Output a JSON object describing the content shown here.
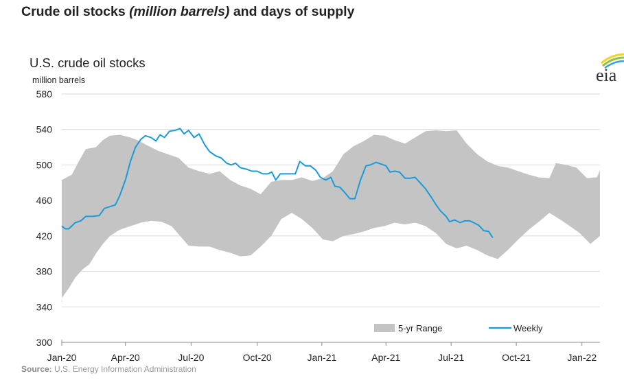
{
  "header": {
    "title_a": "Crude oil stocks ",
    "title_italic": "(million barrels)",
    "title_b": " and days of supply"
  },
  "logo": {
    "text": "eia"
  },
  "source": {
    "label": "Source:",
    "text": "U.S. Energy Information Administration"
  },
  "colors": {
    "weekly": "#1a9bd7",
    "range": "#c4c4c4",
    "grid": "#d9d9d9",
    "axis": "#888888"
  },
  "chart_data": {
    "type": "line",
    "title": "U.S. crude oil stocks",
    "ylabel": "million barrels",
    "xlabel": "",
    "x_unit": "weeks since Jan-20",
    "xlim": [
      0,
      107.4
    ],
    "ylim": [
      300,
      580
    ],
    "yticks": [
      300,
      340,
      380,
      420,
      460,
      500,
      540,
      580
    ],
    "xticks": [
      {
        "label": "Jan-20",
        "x": 0
      },
      {
        "label": "Apr-20",
        "x": 12.7
      },
      {
        "label": "Jul-20",
        "x": 25.8
      },
      {
        "label": "Oct-20",
        "x": 39
      },
      {
        "label": "Jan-21",
        "x": 51.9
      },
      {
        "label": "Apr-21",
        "x": 64.7
      },
      {
        "label": "Jul-21",
        "x": 77.7
      },
      {
        "label": "Oct-21",
        "x": 90.7
      },
      {
        "label": "Jan-22",
        "x": 103.8
      }
    ],
    "grid": true,
    "legend": {
      "placement": "bottom-right",
      "entries": [
        "5-yr Range",
        "Weekly"
      ]
    },
    "series": [
      {
        "name": "5-yr Range",
        "type": "area-range",
        "upper": [
          [
            0,
            483
          ],
          [
            2,
            489
          ],
          [
            3.4,
            504
          ],
          [
            4.8,
            518
          ],
          [
            6.8,
            520
          ],
          [
            8.2,
            528
          ],
          [
            9.6,
            533
          ],
          [
            11.6,
            534
          ],
          [
            13.7,
            531
          ],
          [
            15.1,
            528
          ],
          [
            17.1,
            522
          ],
          [
            19.2,
            516
          ],
          [
            21.2,
            512
          ],
          [
            23.3,
            508
          ],
          [
            25.3,
            497
          ],
          [
            27.4,
            493
          ],
          [
            29.5,
            490
          ],
          [
            31.5,
            493
          ],
          [
            33.6,
            483
          ],
          [
            35.6,
            477
          ],
          [
            37.7,
            473
          ],
          [
            39.7,
            467
          ],
          [
            41.8,
            481
          ],
          [
            43.8,
            483
          ],
          [
            45.9,
            483
          ],
          [
            47.9,
            486
          ],
          [
            50,
            482
          ],
          [
            52.1,
            485
          ],
          [
            54.1,
            493
          ],
          [
            56.2,
            512
          ],
          [
            58.2,
            521
          ],
          [
            60.3,
            527
          ],
          [
            62.3,
            534
          ],
          [
            64.4,
            533
          ],
          [
            66.4,
            528
          ],
          [
            68.5,
            524
          ],
          [
            70.5,
            531
          ],
          [
            72.6,
            538
          ],
          [
            74.7,
            539
          ],
          [
            76.7,
            538
          ],
          [
            78.8,
            539
          ],
          [
            80.8,
            524
          ],
          [
            82.9,
            512
          ],
          [
            84.9,
            504
          ],
          [
            87,
            499
          ],
          [
            89,
            497
          ],
          [
            91.1,
            493
          ],
          [
            93.2,
            489
          ],
          [
            95.2,
            486
          ],
          [
            97.3,
            485
          ],
          [
            98.6,
            502
          ],
          [
            100.7,
            500
          ],
          [
            102.7,
            497
          ],
          [
            104.8,
            485
          ],
          [
            106.8,
            486
          ],
          [
            107.4,
            494
          ]
        ],
        "lower": [
          [
            0,
            350
          ],
          [
            1.4,
            361
          ],
          [
            2.7,
            373
          ],
          [
            4.1,
            382
          ],
          [
            5.5,
            388
          ],
          [
            6.8,
            400
          ],
          [
            8.2,
            411
          ],
          [
            9.6,
            420
          ],
          [
            11.6,
            427
          ],
          [
            13.7,
            431
          ],
          [
            15.8,
            435
          ],
          [
            17.8,
            437
          ],
          [
            19.9,
            436
          ],
          [
            21.9,
            431
          ],
          [
            23.6,
            420
          ],
          [
            25.3,
            409
          ],
          [
            27.4,
            408
          ],
          [
            29.5,
            408
          ],
          [
            31.5,
            404
          ],
          [
            33.6,
            401
          ],
          [
            35.6,
            397
          ],
          [
            37.7,
            398
          ],
          [
            39.7,
            408
          ],
          [
            41.8,
            420
          ],
          [
            43.8,
            439
          ],
          [
            45.9,
            446
          ],
          [
            47.9,
            439
          ],
          [
            50,
            429
          ],
          [
            52.1,
            416
          ],
          [
            54.1,
            414
          ],
          [
            56.2,
            420
          ],
          [
            58.2,
            422
          ],
          [
            60.3,
            425
          ],
          [
            62.3,
            429
          ],
          [
            64.4,
            431
          ],
          [
            66.4,
            435
          ],
          [
            68.5,
            433
          ],
          [
            70.5,
            435
          ],
          [
            72.6,
            431
          ],
          [
            74.7,
            423
          ],
          [
            76.7,
            411
          ],
          [
            78.8,
            406
          ],
          [
            80.8,
            409
          ],
          [
            82.9,
            404
          ],
          [
            84.9,
            398
          ],
          [
            87,
            394
          ],
          [
            89,
            404
          ],
          [
            91.1,
            416
          ],
          [
            93.2,
            427
          ],
          [
            95.2,
            436
          ],
          [
            97.3,
            446
          ],
          [
            99.3,
            439
          ],
          [
            101.4,
            431
          ],
          [
            103.4,
            423
          ],
          [
            105.5,
            411
          ],
          [
            107.4,
            420
          ]
        ]
      },
      {
        "name": "Weekly",
        "type": "line",
        "points": [
          [
            0,
            431
          ],
          [
            0.7,
            428
          ],
          [
            1.4,
            428
          ],
          [
            2.7,
            435
          ],
          [
            3.8,
            437
          ],
          [
            4.8,
            442
          ],
          [
            6.2,
            442
          ],
          [
            7.5,
            443
          ],
          [
            8.5,
            451
          ],
          [
            9.6,
            453
          ],
          [
            10.7,
            455
          ],
          [
            11.6,
            466
          ],
          [
            12.7,
            483
          ],
          [
            13.7,
            504
          ],
          [
            14.7,
            520
          ],
          [
            15.8,
            529
          ],
          [
            16.7,
            533
          ],
          [
            17.8,
            531
          ],
          [
            18.8,
            527
          ],
          [
            19.6,
            534
          ],
          [
            20.5,
            531
          ],
          [
            21.5,
            538
          ],
          [
            22.6,
            539
          ],
          [
            23.6,
            541
          ],
          [
            24.4,
            535
          ],
          [
            25.3,
            539
          ],
          [
            26.4,
            531
          ],
          [
            27.4,
            535
          ],
          [
            28.5,
            523
          ],
          [
            29.5,
            515
          ],
          [
            30.8,
            510
          ],
          [
            31.8,
            508
          ],
          [
            32.9,
            502
          ],
          [
            33.8,
            500
          ],
          [
            34.7,
            502
          ],
          [
            35.6,
            497
          ],
          [
            37,
            495
          ],
          [
            37.9,
            493
          ],
          [
            39,
            493
          ],
          [
            40.1,
            490
          ],
          [
            41.1,
            490
          ],
          [
            41.9,
            492
          ],
          [
            42.7,
            483
          ],
          [
            43.6,
            490
          ],
          [
            45.5,
            490
          ],
          [
            46.6,
            490
          ],
          [
            47.5,
            504
          ],
          [
            48.6,
            499
          ],
          [
            49.6,
            499
          ],
          [
            50.7,
            494
          ],
          [
            51.6,
            486
          ],
          [
            52.7,
            483
          ],
          [
            53.7,
            486
          ],
          [
            54.5,
            476
          ],
          [
            55.5,
            475
          ],
          [
            56.6,
            468
          ],
          [
            57.5,
            462
          ],
          [
            58.5,
            462
          ],
          [
            59.6,
            483
          ],
          [
            60.7,
            499
          ],
          [
            61.6,
            500
          ],
          [
            62.7,
            503
          ],
          [
            63.7,
            501
          ],
          [
            64.7,
            499
          ],
          [
            65.5,
            492
          ],
          [
            66.4,
            493
          ],
          [
            67.4,
            492
          ],
          [
            68.5,
            485
          ],
          [
            69.5,
            485
          ],
          [
            70.5,
            486
          ],
          [
            71.5,
            480
          ],
          [
            72.6,
            473
          ],
          [
            73.7,
            464
          ],
          [
            74.7,
            455
          ],
          [
            75.6,
            448
          ],
          [
            76.7,
            442
          ],
          [
            77.4,
            436
          ],
          [
            78.4,
            438
          ],
          [
            79.5,
            435
          ],
          [
            80.4,
            437
          ],
          [
            81.4,
            437
          ],
          [
            82.2,
            435
          ],
          [
            83.2,
            432
          ],
          [
            84.2,
            426
          ],
          [
            85.2,
            425
          ],
          [
            86,
            418
          ]
        ]
      }
    ]
  }
}
